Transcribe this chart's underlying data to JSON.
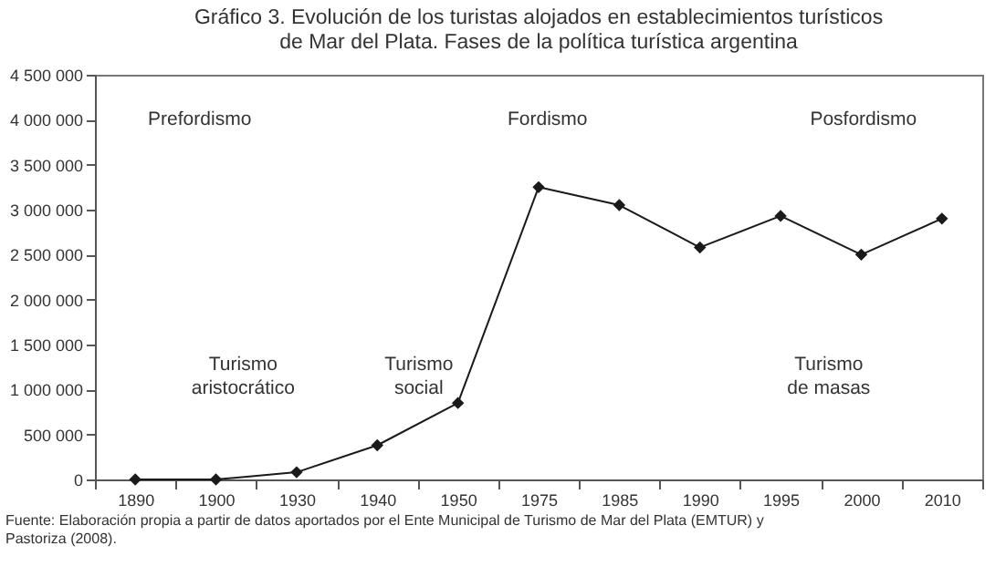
{
  "chart_data": {
    "type": "line",
    "title": "Gráfico 3. Evolución de los turistas alojados en establecimientos turísticos\nde Mar del Plata. Fases de la política turística argentina",
    "categories": [
      "1890",
      "1900",
      "1930",
      "1940",
      "1950",
      "1975",
      "1985",
      "1990",
      "1995",
      "2000",
      "2010"
    ],
    "series": [
      {
        "color": "#1a1a1a",
        "values": [
          0,
          0,
          80000,
          380000,
          850000,
          3250000,
          3050000,
          2580000,
          2930000,
          2500000,
          2900000
        ]
      }
    ],
    "ylim": [
      0,
      4500000
    ],
    "yticks": [
      {
        "value": 0,
        "label": "0"
      },
      {
        "value": 500000,
        "label": "500 000"
      },
      {
        "value": 1000000,
        "label": "1 000 000"
      },
      {
        "value": 1500000,
        "label": "1 500 000"
      },
      {
        "value": 2000000,
        "label": "2 000 000"
      },
      {
        "value": 2500000,
        "label": "2 500 000"
      },
      {
        "value": 3000000,
        "label": "3 000 000"
      },
      {
        "value": 3500000,
        "label": "3 500 000"
      },
      {
        "value": 4000000,
        "label": "4 000 000"
      },
      {
        "value": 4500000,
        "label": "4 500 000"
      }
    ],
    "marker": "diamond",
    "line_style": "solid",
    "grid": false,
    "annotations": [
      "Prefordismo",
      "Fordismo",
      "Posfordismo",
      "Turismo\naristocrático",
      "Turismo\nsocial",
      "Turismo\nde masas",
      "Fuente: Elaboración propia a partir de datos aportados por el Ente Municipal de Turismo de Mar del Plata (EMTUR) y\nPastoriza (2008)."
    ]
  }
}
